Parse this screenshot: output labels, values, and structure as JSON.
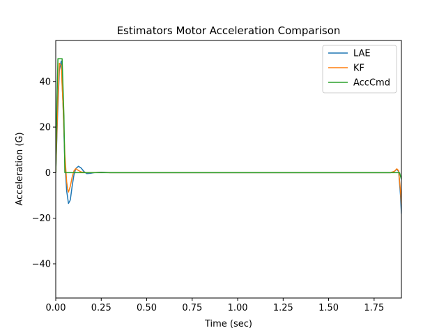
{
  "chart_data": {
    "type": "line",
    "title": "Estimators Motor Acceleration Comparison",
    "xlabel": "Time (sec)",
    "ylabel": "Acceleration (G)",
    "xlim": [
      0,
      1.9
    ],
    "ylim": [
      -55,
      58
    ],
    "xticks": [
      0,
      0.25,
      0.5,
      0.75,
      1.0,
      1.25,
      1.5,
      1.75
    ],
    "xtick_labels": [
      "0.00",
      "0.25",
      "0.50",
      "0.75",
      "1.00",
      "1.25",
      "1.50",
      "1.75"
    ],
    "yticks": [
      -40,
      -20,
      0,
      20,
      40
    ],
    "ytick_labels": [
      "−40",
      "−20",
      "0",
      "20",
      "40"
    ],
    "grid": false,
    "legend_position": "top-right",
    "series": [
      {
        "name": "LAE",
        "color": "#1f77b4",
        "points": [
          [
            0.0,
            0
          ],
          [
            0.01,
            25
          ],
          [
            0.02,
            45
          ],
          [
            0.03,
            49
          ],
          [
            0.04,
            30
          ],
          [
            0.05,
            5
          ],
          [
            0.06,
            -8
          ],
          [
            0.07,
            -13.5
          ],
          [
            0.08,
            -12
          ],
          [
            0.09,
            -6
          ],
          [
            0.1,
            -1
          ],
          [
            0.11,
            1.8
          ],
          [
            0.125,
            2.8
          ],
          [
            0.14,
            2
          ],
          [
            0.155,
            0.5
          ],
          [
            0.17,
            -0.4
          ],
          [
            0.19,
            -0.3
          ],
          [
            0.21,
            0
          ],
          [
            0.25,
            0.2
          ],
          [
            0.3,
            0
          ],
          [
            1.8,
            0
          ],
          [
            1.84,
            0
          ],
          [
            1.86,
            0.5
          ],
          [
            1.875,
            1.5
          ],
          [
            1.885,
            0.5
          ],
          [
            1.895,
            -10
          ],
          [
            1.9,
            -18
          ]
        ]
      },
      {
        "name": "KF",
        "color": "#ff7f0e",
        "points": [
          [
            0.0,
            0
          ],
          [
            0.01,
            28
          ],
          [
            0.02,
            48
          ],
          [
            0.03,
            47
          ],
          [
            0.04,
            30
          ],
          [
            0.05,
            8
          ],
          [
            0.06,
            -4
          ],
          [
            0.065,
            -7
          ],
          [
            0.07,
            -8.5
          ],
          [
            0.08,
            -6
          ],
          [
            0.09,
            -2
          ],
          [
            0.1,
            0.8
          ],
          [
            0.11,
            1.8
          ],
          [
            0.12,
            1.2
          ],
          [
            0.14,
            0.3
          ],
          [
            0.17,
            0
          ],
          [
            0.25,
            0.1
          ],
          [
            0.3,
            0
          ],
          [
            1.8,
            0
          ],
          [
            1.84,
            0
          ],
          [
            1.86,
            0.5
          ],
          [
            1.875,
            1.7
          ],
          [
            1.885,
            0.8
          ],
          [
            1.895,
            -8
          ],
          [
            1.9,
            -14
          ]
        ]
      },
      {
        "name": "AccCmd",
        "color": "#2ca02c",
        "points": [
          [
            0.0,
            0
          ],
          [
            0.005,
            25
          ],
          [
            0.012,
            50
          ],
          [
            0.035,
            50
          ],
          [
            0.045,
            25
          ],
          [
            0.05,
            0
          ],
          [
            0.3,
            0
          ],
          [
            1.89,
            0
          ],
          [
            1.9,
            -3
          ]
        ]
      }
    ]
  }
}
